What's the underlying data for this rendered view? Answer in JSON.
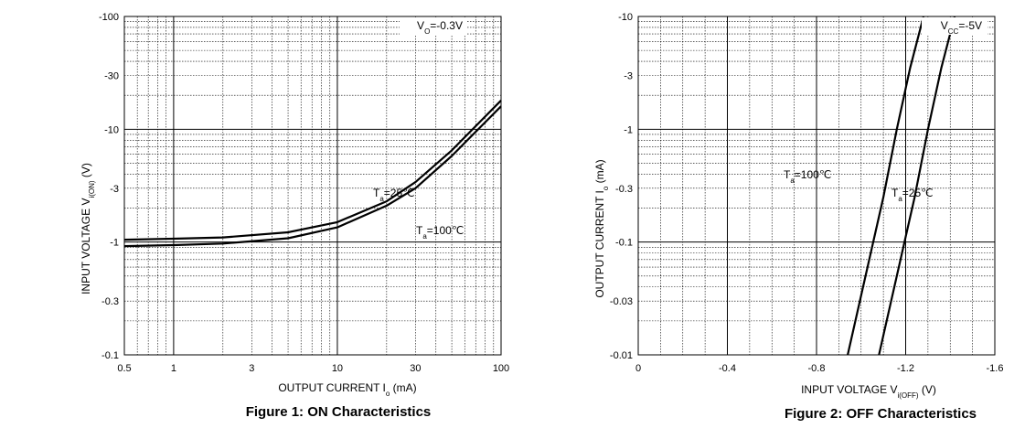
{
  "chart_data": [
    {
      "type": "line",
      "title": "Figure 1:  ON Characteristics",
      "condition": {
        "main": "V",
        "sub": "O",
        "rest": "=-0.3V"
      },
      "xlabel": {
        "main": "OUTPUT CURRENT   I",
        "sub": "o",
        "rest": "   (mA)"
      },
      "ylabel": {
        "main": "INPUT VOLTAGE   V",
        "sub": "i(ON)",
        "rest": "   (V)"
      },
      "xlim": [
        0.5,
        100
      ],
      "ylim": [
        0.1,
        100
      ],
      "y_scale": "log-reversed",
      "x_scale": "log",
      "xticks": [
        "0.5",
        "1",
        "3",
        "10",
        "30",
        "100"
      ],
      "yticks": [
        "-100",
        "-30",
        "-10",
        "-3",
        "-1",
        "-0.3",
        "-0.1"
      ],
      "series": [
        {
          "name": {
            "main": "T",
            "sub": "a",
            "rest": "=25℃"
          },
          "x": [
            0.5,
            1,
            2,
            5,
            10,
            20,
            30,
            50,
            100
          ],
          "y": [
            1.05,
            1.07,
            1.1,
            1.22,
            1.5,
            2.3,
            3.4,
            6.5,
            18
          ]
        },
        {
          "name": {
            "main": "T",
            "sub": "a",
            "rest": "=100℃"
          },
          "x": [
            0.5,
            1,
            2,
            5,
            10,
            20,
            30,
            50,
            100
          ],
          "y": [
            0.92,
            0.94,
            0.97,
            1.08,
            1.35,
            2.1,
            3.0,
            5.8,
            16
          ]
        }
      ],
      "grid": true
    },
    {
      "type": "line",
      "title": "Figure 2:  OFF Characteristics",
      "condition": {
        "main": "V",
        "sub": "CC",
        "rest": "=-5V"
      },
      "xlabel": {
        "main": "INPUT VOLTAGE   V",
        "sub": "i(OFF)",
        "rest": "   (V)"
      },
      "ylabel": {
        "main": "OUTPUT CURRENT   I",
        "sub": "o",
        "rest": "   (mA)"
      },
      "xlim": [
        0,
        1.6
      ],
      "ylim": [
        0.01,
        10
      ],
      "y_scale": "log-reversed",
      "x_scale": "linear",
      "xticks": [
        "0",
        "-0.4",
        "-0.8",
        "-1.2",
        "-1.6"
      ],
      "yticks": [
        "-10",
        "-3",
        "-1",
        "-0.3",
        "-0.1",
        "-0.03",
        "-0.01"
      ],
      "series": [
        {
          "name": {
            "main": "T",
            "sub": "a",
            "rest": "=100℃"
          },
          "x": [
            0.94,
            1.02,
            1.1,
            1.16,
            1.22,
            1.28
          ],
          "y": [
            0.01,
            0.05,
            0.25,
            1,
            3.5,
            10
          ]
        },
        {
          "name": {
            "main": "T",
            "sub": "a",
            "rest": "=25℃"
          },
          "x": [
            1.08,
            1.16,
            1.24,
            1.3,
            1.36,
            1.42
          ],
          "y": [
            0.01,
            0.05,
            0.25,
            1,
            3.5,
            10
          ]
        }
      ],
      "grid": true
    }
  ]
}
